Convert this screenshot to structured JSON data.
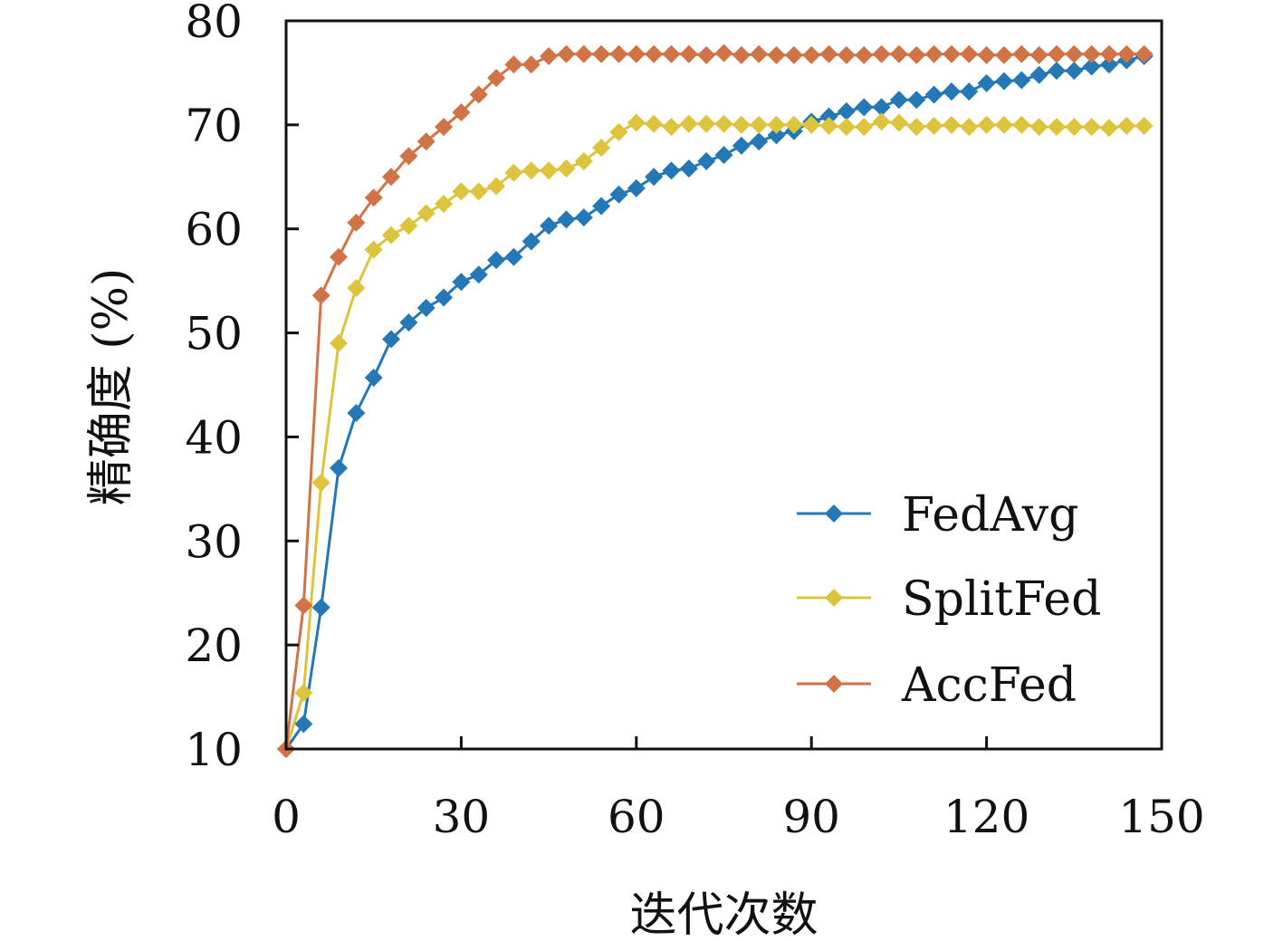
{
  "chart_data": {
    "type": "line",
    "title": "",
    "xlabel": "迭代次数",
    "ylabel": "精确度 (%)",
    "xlim": [
      0,
      150
    ],
    "ylim": [
      10,
      80
    ],
    "xticks": [
      0,
      30,
      60,
      90,
      120,
      150
    ],
    "yticks": [
      10,
      20,
      30,
      40,
      50,
      60,
      70,
      80
    ],
    "grid": false,
    "legend_position": "bottom-right",
    "series": [
      {
        "name": "FedAvg",
        "color": "#2478b5",
        "x": [
          0,
          3,
          6,
          9,
          12,
          15,
          18,
          21,
          24,
          27,
          30,
          33,
          36,
          39,
          42,
          45,
          48,
          51,
          54,
          57,
          60,
          63,
          66,
          69,
          72,
          75,
          78,
          81,
          84,
          87,
          90,
          93,
          96,
          99,
          102,
          105,
          108,
          111,
          114,
          117,
          120,
          123,
          126,
          129,
          132,
          135,
          138,
          141,
          144,
          147
        ],
        "y": [
          10,
          12.4,
          23.6,
          37,
          42.3,
          45.7,
          49.4,
          51,
          52.4,
          53.4,
          54.9,
          55.6,
          57,
          57.3,
          58.8,
          60.3,
          60.9,
          61.1,
          62.2,
          63.3,
          63.9,
          65,
          65.6,
          65.8,
          66.5,
          67.1,
          68,
          68.4,
          69,
          69.4,
          70.3,
          70.8,
          71.3,
          71.7,
          71.7,
          72.4,
          72.4,
          72.9,
          73.2,
          73.2,
          74,
          74.2,
          74.3,
          74.8,
          75.2,
          75.2,
          75.6,
          75.8,
          76.2,
          76.6
        ]
      },
      {
        "name": "SplitFed",
        "color": "#dcc43c",
        "x": [
          0,
          3,
          6,
          9,
          12,
          15,
          18,
          21,
          24,
          27,
          30,
          33,
          36,
          39,
          42,
          45,
          48,
          51,
          54,
          57,
          60,
          63,
          66,
          69,
          72,
          75,
          78,
          81,
          84,
          87,
          90,
          93,
          96,
          99,
          102,
          105,
          108,
          111,
          114,
          117,
          120,
          123,
          126,
          129,
          132,
          135,
          138,
          141,
          144,
          147
        ],
        "y": [
          10,
          15.4,
          35.6,
          49,
          54.3,
          58,
          59.4,
          60.3,
          61.5,
          62.4,
          63.6,
          63.6,
          64.1,
          65.4,
          65.6,
          65.6,
          65.8,
          66.5,
          67.8,
          69.3,
          70.2,
          70.1,
          69.8,
          70.1,
          70.1,
          70.1,
          70,
          70,
          70,
          70,
          70,
          69.9,
          69.8,
          69.8,
          70.3,
          70.2,
          69.8,
          69.9,
          70,
          69.8,
          70,
          70,
          70,
          69.8,
          69.8,
          69.8,
          69.8,
          69.7,
          69.9,
          69.9
        ]
      },
      {
        "name": "AccFed",
        "color": "#d07346",
        "x": [
          0,
          3,
          6,
          9,
          12,
          15,
          18,
          21,
          24,
          27,
          30,
          33,
          36,
          39,
          42,
          45,
          48,
          51,
          54,
          57,
          60,
          63,
          66,
          69,
          72,
          75,
          78,
          81,
          84,
          87,
          90,
          93,
          96,
          99,
          102,
          105,
          108,
          111,
          114,
          117,
          120,
          123,
          126,
          129,
          132,
          135,
          138,
          141,
          144,
          147
        ],
        "y": [
          10,
          23.8,
          53.6,
          57.3,
          60.6,
          63,
          65,
          67,
          68.4,
          69.8,
          71.2,
          72.9,
          74.5,
          75.8,
          75.8,
          76.6,
          76.8,
          76.8,
          76.8,
          76.8,
          76.8,
          76.8,
          76.8,
          76.8,
          76.7,
          76.9,
          76.7,
          76.8,
          76.7,
          76.7,
          76.7,
          76.8,
          76.7,
          76.7,
          76.8,
          76.8,
          76.7,
          76.8,
          76.8,
          76.8,
          76.7,
          76.7,
          76.8,
          76.7,
          76.8,
          76.8,
          76.8,
          76.8,
          76.8,
          76.8
        ]
      }
    ]
  }
}
